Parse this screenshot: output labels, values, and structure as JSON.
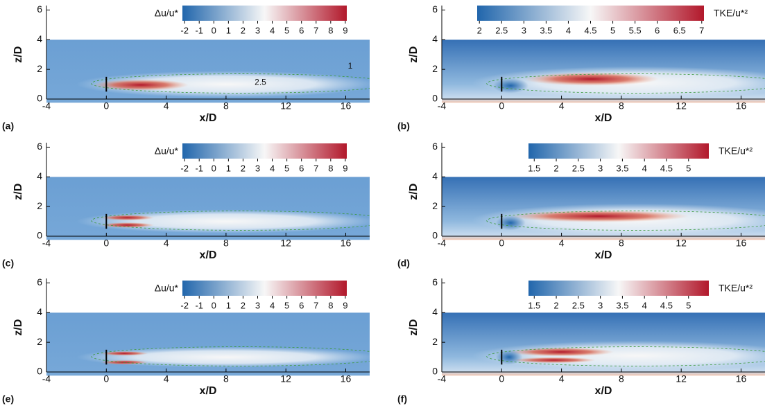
{
  "chart_data": [
    {
      "type": "contour",
      "label": "(a)",
      "xlabel": "x/D",
      "ylabel": "z/D",
      "xlim": [
        -4,
        17.6
      ],
      "ylim": [
        0,
        6.3
      ],
      "xticks": [
        -4,
        0,
        4,
        8,
        12,
        16
      ],
      "yticks": [
        0,
        2,
        4,
        6
      ],
      "colorbar": {
        "label": "Δu/u*",
        "lim": [
          -2.15,
          9.1
        ],
        "ticks": [
          -2,
          -1,
          0,
          1,
          2,
          3,
          4,
          5,
          6,
          7,
          8,
          9
        ],
        "colors": [
          "#2166ac",
          "#f7f7f7",
          "#b2182b"
        ]
      },
      "contour_labels": [
        "1",
        "2.5"
      ]
    },
    {
      "type": "contour",
      "label": "(b)",
      "xlabel": "x/D",
      "ylabel": "z/D",
      "xlim": [
        -4,
        17.6
      ],
      "ylim": [
        0,
        6.3
      ],
      "xticks": [
        -4,
        0,
        4,
        8,
        12,
        16
      ],
      "yticks": [
        0,
        2,
        4,
        6
      ],
      "colorbar": {
        "label": "TKE/u*²",
        "lim": [
          1.95,
          7.05
        ],
        "ticks": [
          2,
          2.5,
          3,
          3.5,
          4,
          4.5,
          5,
          5.5,
          6,
          6.5,
          7
        ],
        "colors": [
          "#2166ac",
          "#f7f7f7",
          "#b2182b"
        ]
      }
    },
    {
      "type": "contour",
      "label": "(c)",
      "xlabel": "x/D",
      "ylabel": "z/D",
      "xlim": [
        -4,
        17.6
      ],
      "ylim": [
        0,
        6.3
      ],
      "xticks": [
        -4,
        0,
        4,
        8,
        12,
        16
      ],
      "yticks": [
        0,
        2,
        4,
        6
      ],
      "colorbar": {
        "label": "Δu/u*",
        "lim": [
          -2.15,
          9.1
        ],
        "ticks": [
          -2,
          -1,
          0,
          1,
          2,
          3,
          4,
          5,
          6,
          7,
          8,
          9
        ],
        "colors": [
          "#2166ac",
          "#f7f7f7",
          "#b2182b"
        ]
      }
    },
    {
      "type": "contour",
      "label": "(d)",
      "xlabel": "x/D",
      "ylabel": "z/D",
      "xlim": [
        -4,
        17.6
      ],
      "ylim": [
        0,
        6.3
      ],
      "xticks": [
        -4,
        0,
        4,
        8,
        12,
        16
      ],
      "yticks": [
        0,
        2,
        4,
        6
      ],
      "colorbar": {
        "label": "TKE/u*²",
        "lim": [
          1.37,
          5.46
        ],
        "ticks": [
          1.5,
          2,
          2.5,
          3,
          3.5,
          4,
          4.5,
          5
        ],
        "colors": [
          "#2166ac",
          "#f7f7f7",
          "#b2182b"
        ]
      }
    },
    {
      "type": "contour",
      "label": "(e)",
      "xlabel": "x/D",
      "ylabel": "z/D",
      "xlim": [
        -4,
        17.6
      ],
      "ylim": [
        0,
        6.3
      ],
      "xticks": [
        -4,
        0,
        4,
        8,
        12,
        16
      ],
      "yticks": [
        0,
        2,
        4,
        6
      ],
      "colorbar": {
        "label": "Δu/u*",
        "lim": [
          -2.15,
          9.1
        ],
        "ticks": [
          -2,
          -1,
          0,
          1,
          2,
          3,
          4,
          5,
          6,
          7,
          8,
          9
        ],
        "colors": [
          "#2166ac",
          "#f7f7f7",
          "#b2182b"
        ]
      }
    },
    {
      "type": "contour",
      "label": "(f)",
      "xlabel": "x/D",
      "ylabel": "z/D",
      "xlim": [
        -4,
        17.6
      ],
      "ylim": [
        0,
        6.3
      ],
      "xticks": [
        -4,
        0,
        4,
        8,
        12,
        16
      ],
      "yticks": [
        0,
        2,
        4,
        6
      ],
      "colorbar": {
        "label": "TKE/u*²",
        "lim": [
          1.37,
          5.46
        ],
        "ticks": [
          1.5,
          2,
          2.5,
          3,
          3.5,
          4,
          4.5,
          5
        ],
        "colors": [
          "#2166ac",
          "#f7f7f7",
          "#b2182b"
        ]
      }
    }
  ]
}
